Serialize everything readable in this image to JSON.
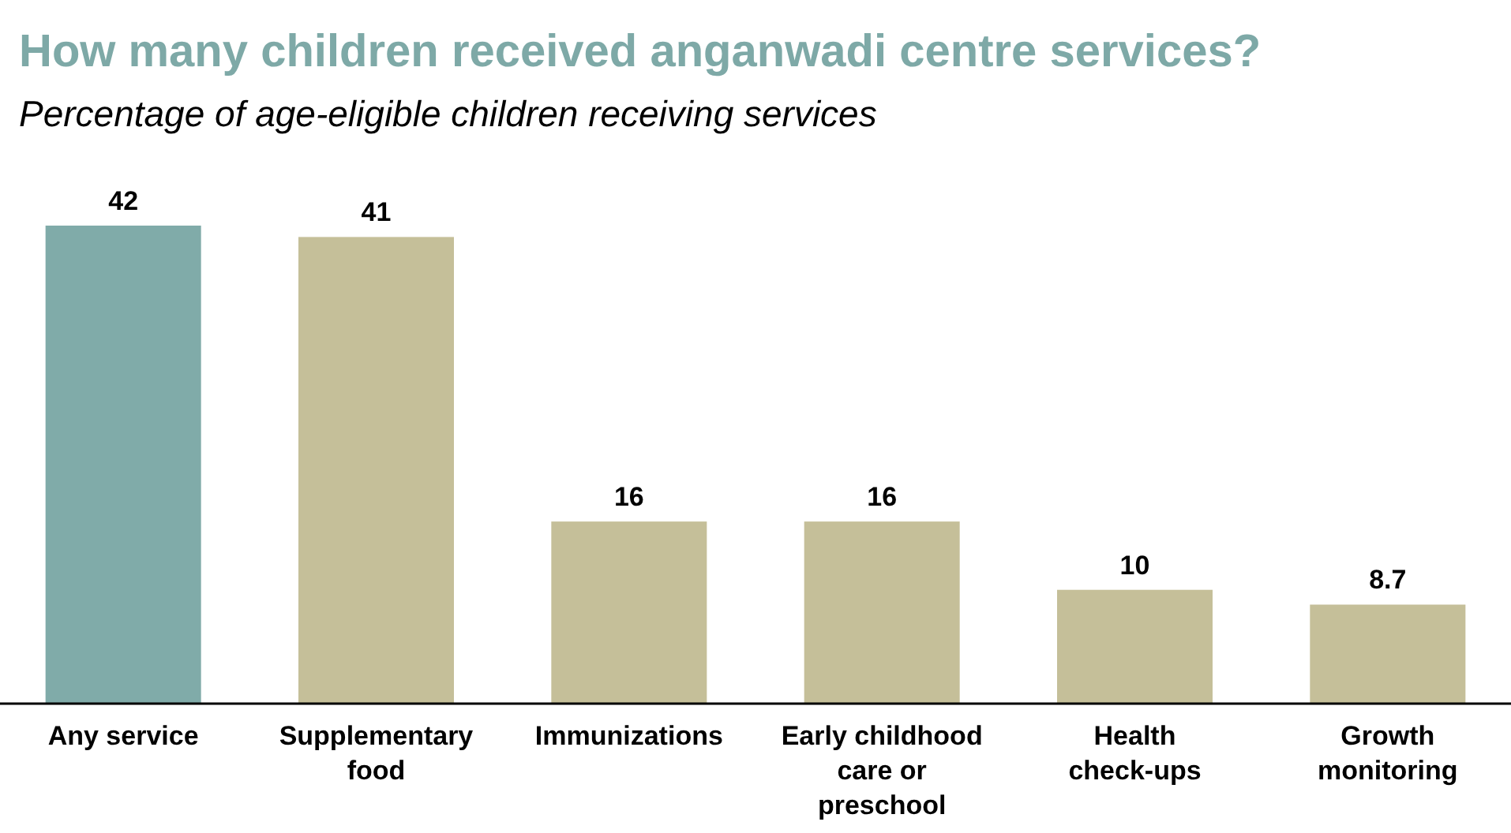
{
  "chart_data": {
    "type": "bar",
    "title": "How many children received anganwadi centre services?",
    "subtitle": "Percentage of age-eligible children receiving services",
    "categories": [
      "Any service",
      "Supplementary food",
      "Immunizations",
      "Early childhood care or preschool",
      "Health check-ups",
      "Growth monitoring"
    ],
    "values": [
      42,
      41,
      16,
      16,
      10,
      8.7
    ],
    "colors": [
      "#80aba9",
      "#c5bf99",
      "#c5bf99",
      "#c5bf99",
      "#c5bf99",
      "#c5bf99"
    ],
    "data_labels": true
  }
}
